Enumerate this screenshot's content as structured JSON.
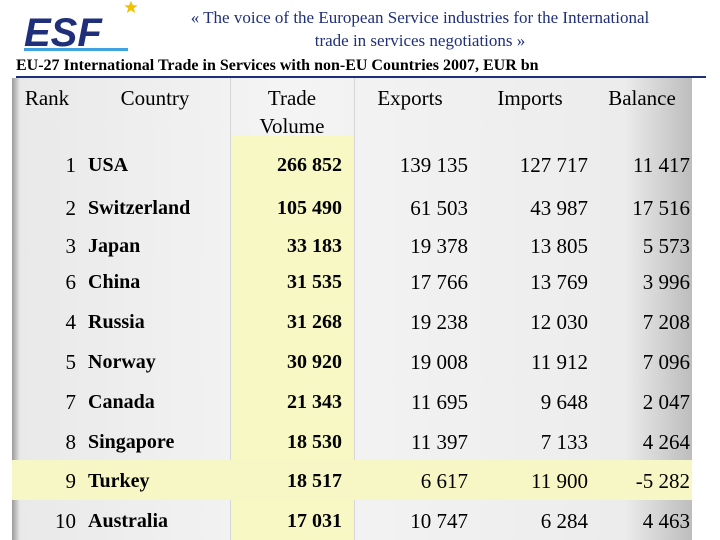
{
  "header": {
    "logo_text": "ESF",
    "tagline_line1": "« The voice of the European Service industries for the International",
    "tagline_line2": "trade in services negotiations »"
  },
  "title": "EU-27 International Trade in Services with non-EU Countries 2007, EUR bn",
  "columns": {
    "rank": "Rank",
    "country": "Country",
    "volume_line1": "Trade",
    "volume_line2": "Volume",
    "exports": "Exports",
    "imports": "Imports",
    "balance": "Balance"
  },
  "rows": [
    {
      "rank": "1",
      "country": "USA",
      "volume": "266 852",
      "exports": "139 135",
      "imports": "127 717",
      "balance": "11 417"
    },
    {
      "rank": "2",
      "country": "Switzerland",
      "volume": "105 490",
      "exports": "61 503",
      "imports": "43 987",
      "balance": "17 516"
    },
    {
      "rank": "3",
      "country": "Japan",
      "volume": "33 183",
      "exports": "19 378",
      "imports": "13 805",
      "balance": "5 573"
    },
    {
      "rank": "6",
      "country": "China",
      "volume": "31 535",
      "exports": "17 766",
      "imports": "13 769",
      "balance": "3 996"
    },
    {
      "rank": "4",
      "country": "Russia",
      "volume": "31 268",
      "exports": "19 238",
      "imports": "12 030",
      "balance": "7 208"
    },
    {
      "rank": "5",
      "country": "Norway",
      "volume": "30 920",
      "exports": "19 008",
      "imports": "11 912",
      "balance": "7 096"
    },
    {
      "rank": "7",
      "country": "Canada",
      "volume": "21 343",
      "exports": "11 695",
      "imports": "9 648",
      "balance": "2 047"
    },
    {
      "rank": "8",
      "country": "Singapore",
      "volume": "18 530",
      "exports": "11 397",
      "imports": "7 133",
      "balance": "4 264"
    },
    {
      "rank": "9",
      "country": "Turkey",
      "volume": "18 517",
      "exports": "6 617",
      "imports": "11 900",
      "balance": "-5 282"
    },
    {
      "rank": "10",
      "country": "Australia",
      "volume": "17 031",
      "exports": "10 747",
      "imports": "6 284",
      "balance": "4 463"
    }
  ],
  "highlighted_row_index": 8,
  "colors": {
    "brand_blue": "#1f2f7a",
    "logo_light_blue": "#3ea3e0",
    "highlight": "#f7f7c6",
    "star": "#f2c200"
  }
}
